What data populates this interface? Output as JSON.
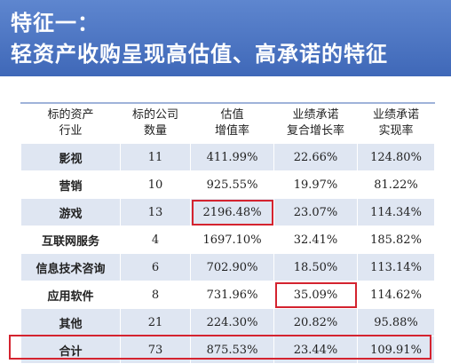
{
  "header": {
    "title_line1": "特征一：",
    "title_line2": "轻资产收购呈现高估值、高承诺的特征"
  },
  "table": {
    "columns": [
      {
        "line1": "标的资产",
        "line2": "行业"
      },
      {
        "line1": "标的公司",
        "line2": "数量"
      },
      {
        "line1": "估值",
        "line2": "增值率"
      },
      {
        "line1": "业绩承诺",
        "line2": "复合增长率"
      },
      {
        "line1": "业绩承诺",
        "line2": "实现率"
      }
    ],
    "rows": [
      [
        "影视",
        "11",
        "411.99%",
        "22.66%",
        "124.80%"
      ],
      [
        "营销",
        "10",
        "925.55%",
        "19.97%",
        "81.22%"
      ],
      [
        "游戏",
        "13",
        "2196.48%",
        "23.07%",
        "114.34%"
      ],
      [
        "互联网服务",
        "4",
        "1697.10%",
        "32.41%",
        "185.82%"
      ],
      [
        "信息技术咨询",
        "6",
        "702.90%",
        "18.50%",
        "113.14%"
      ],
      [
        "应用软件",
        "8",
        "731.96%",
        "35.09%",
        "114.62%"
      ],
      [
        "其他",
        "21",
        "224.30%",
        "20.82%",
        "95.88%"
      ],
      [
        "合计",
        "73",
        "875.53%",
        "23.44%",
        "109.91%"
      ]
    ]
  },
  "highlight_color": "#d4232f",
  "header_color": "#4a72c0",
  "shade_color": "#dfe6f2"
}
